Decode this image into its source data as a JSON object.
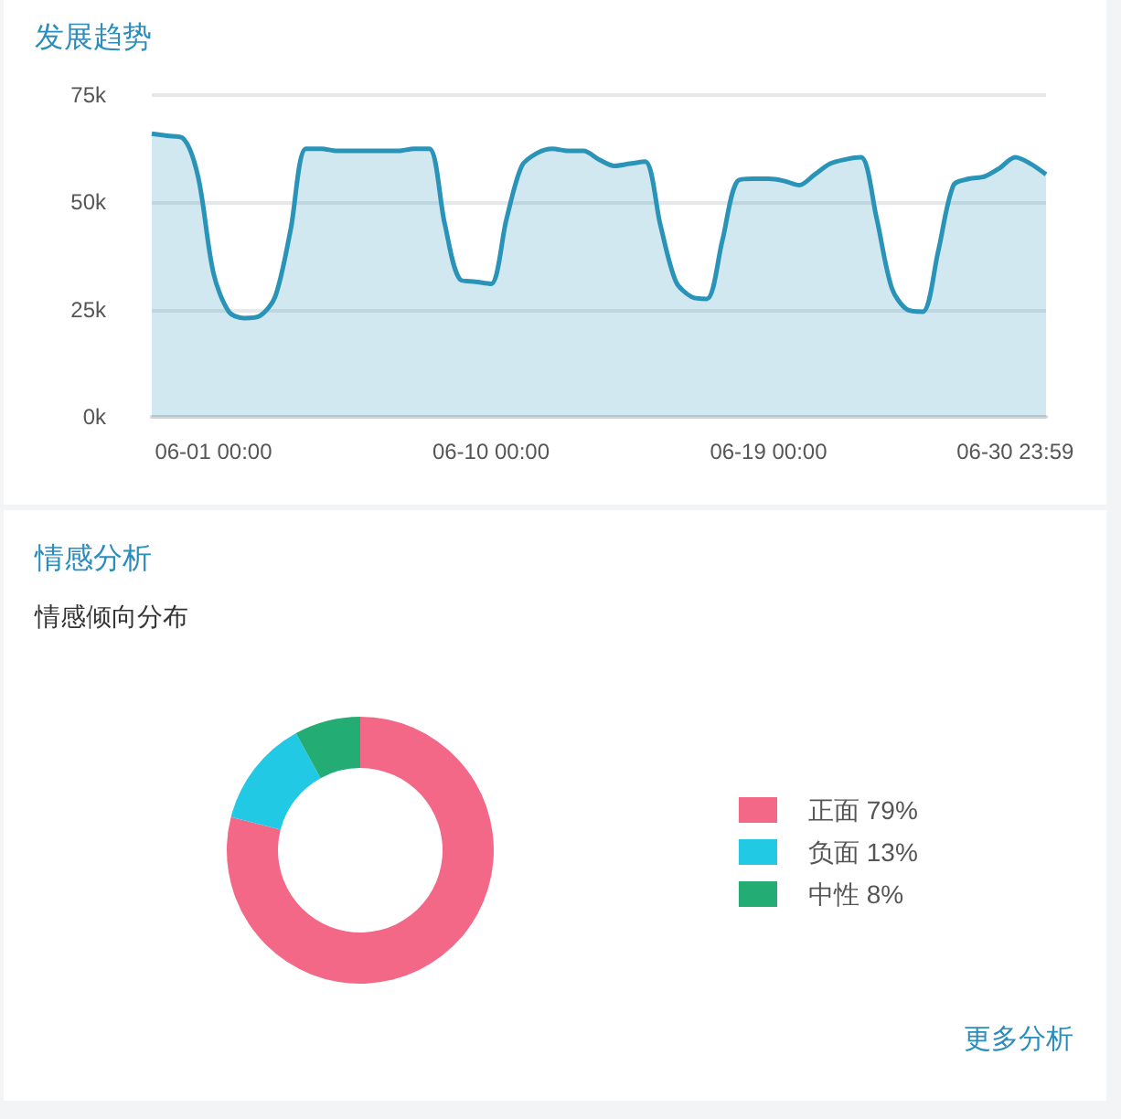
{
  "chart_data": [
    {
      "type": "area",
      "title": "发展趋势",
      "categories": [
        null,
        null,
        null,
        null,
        "06-01 00:00",
        null,
        null,
        null,
        null,
        null,
        null,
        null,
        null,
        null,
        null,
        null,
        null,
        null,
        null,
        null,
        null,
        null,
        "06-10 00:00",
        null,
        null,
        null,
        null,
        null,
        null,
        null,
        null,
        null,
        null,
        null,
        null,
        null,
        null,
        null,
        null,
        null,
        "06-19 00:00",
        null,
        null,
        null,
        null,
        null,
        null,
        null,
        null,
        null,
        null,
        null,
        null,
        null,
        null,
        null,
        "06-30 23:59",
        null,
        null
      ],
      "values": [
        66000,
        65500,
        65000,
        56000,
        33500,
        24500,
        23000,
        23500,
        28000,
        43500,
        62500,
        62500,
        62000,
        62000,
        62000,
        62000,
        62000,
        62500,
        62500,
        45000,
        32000,
        31500,
        31000,
        46000,
        58500,
        61500,
        62500,
        62000,
        62000,
        60000,
        58500,
        59000,
        59500,
        44500,
        31500,
        28000,
        27500,
        41000,
        55000,
        55500,
        55500,
        55000,
        54000,
        56500,
        59000,
        60000,
        60500,
        46500,
        30000,
        25000,
        24500,
        38500,
        54000,
        55500,
        56000,
        58000,
        60500,
        59000,
        56500
      ],
      "color": "#2a93b8",
      "ylim": [
        0,
        75000
      ],
      "yticks": [
        {
          "value": 0,
          "label": "0k"
        },
        {
          "value": 25000,
          "label": "25k"
        },
        {
          "value": 50000,
          "label": "50k"
        },
        {
          "value": 75000,
          "label": "75k"
        }
      ],
      "grid": "y",
      "marker": "none"
    },
    {
      "type": "donut",
      "title": "情感分析",
      "subtitle": "情感倾向分布",
      "categories": [
        "正面",
        "负面",
        "中性"
      ],
      "values": [
        79,
        13,
        8
      ],
      "value_labels": [
        "79%",
        "13%",
        "8%"
      ],
      "colors": [
        "#f36787",
        "#22c9e5",
        "#23ad74"
      ],
      "legend": "right",
      "annotations": [
        "更多分析"
      ]
    }
  ]
}
